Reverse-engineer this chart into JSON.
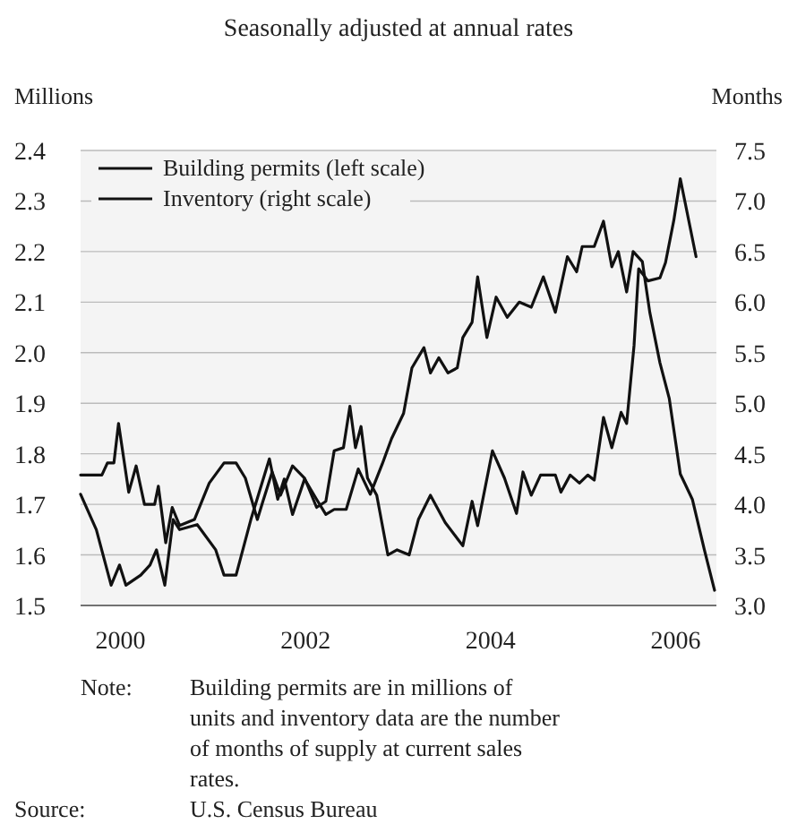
{
  "chart_data": {
    "type": "line",
    "title": "Seasonally adjusted at annual rates",
    "ylabel": "Millions",
    "y2label": "Months",
    "xlim": [
      1999.57,
      2006.44
    ],
    "xticks": [
      2000,
      2002,
      2004,
      2006
    ],
    "ylim": [
      1.5,
      2.4
    ],
    "yticks": [
      {
        "value": 1.5,
        "label": "1.5"
      },
      {
        "value": 1.6,
        "label": "1.6"
      },
      {
        "value": 1.7,
        "label": "1.7"
      },
      {
        "value": 1.8,
        "label": "1.8"
      },
      {
        "value": 1.9,
        "label": "1.9"
      },
      {
        "value": 2.0,
        "label": "2.0"
      },
      {
        "value": 2.1,
        "label": "2.1"
      },
      {
        "value": 2.2,
        "label": "2.2"
      },
      {
        "value": 2.3,
        "label": "2.3"
      },
      {
        "value": 2.4,
        "label": "2.4"
      }
    ],
    "y2lim": [
      3.0,
      7.5
    ],
    "y2ticks": [
      {
        "value": 3.0,
        "label": "3.0"
      },
      {
        "value": 3.5,
        "label": "3.5"
      },
      {
        "value": 4.0,
        "label": "4.0"
      },
      {
        "value": 4.5,
        "label": "4.5"
      },
      {
        "value": 5.0,
        "label": "5.0"
      },
      {
        "value": 5.5,
        "label": "5.5"
      },
      {
        "value": 6.0,
        "label": "6.0"
      },
      {
        "value": 6.5,
        "label": "6.5"
      },
      {
        "value": 7.0,
        "label": "7.0"
      },
      {
        "value": 7.5,
        "label": "7.5"
      }
    ],
    "grid": "y",
    "legend": "top left",
    "line_style": "solid",
    "series": [
      {
        "name": "Building permits (left scale)",
        "color": "#111111",
        "x": [
          1999.57,
          1999.74,
          1999.9,
          1999.99,
          2000.06,
          2000.22,
          2000.32,
          2000.39,
          2000.48,
          2000.57,
          2000.64,
          2000.83,
          2001.03,
          2001.12,
          2001.25,
          2001.41,
          2001.61,
          2001.7,
          2001.77,
          2001.86,
          2001.99,
          2002.12,
          2002.22,
          2002.31,
          2002.44,
          2002.57,
          2002.7,
          2002.83,
          2002.93,
          2003.06,
          2003.15,
          2003.28,
          2003.35,
          2003.44,
          2003.54,
          2003.64,
          2003.7,
          2003.8,
          2003.86,
          2003.96,
          2004.06,
          2004.18,
          2004.31,
          2004.44,
          2004.57,
          2004.7,
          2004.83,
          2004.93,
          2004.99,
          2005.12,
          2005.22,
          2005.31,
          2005.38,
          2005.47,
          2005.54,
          2005.64,
          2005.72,
          2005.83,
          2005.93,
          2006.05,
          2006.18,
          2006.31,
          2006.42
        ],
        "values": [
          1.72,
          1.65,
          1.54,
          1.58,
          1.54,
          1.56,
          1.58,
          1.61,
          1.54,
          1.67,
          1.65,
          1.66,
          1.61,
          1.56,
          1.56,
          1.67,
          1.79,
          1.71,
          1.75,
          1.68,
          1.75,
          1.71,
          1.68,
          1.69,
          1.69,
          1.77,
          1.72,
          1.78,
          1.83,
          1.88,
          1.97,
          2.01,
          1.96,
          1.99,
          1.96,
          1.97,
          2.03,
          2.06,
          2.15,
          2.03,
          2.11,
          2.07,
          2.1,
          2.09,
          2.15,
          2.08,
          2.19,
          2.16,
          2.21,
          2.21,
          2.26,
          2.17,
          2.2,
          2.12,
          2.2,
          2.18,
          2.08,
          1.98,
          1.91,
          1.76,
          1.71,
          1.61,
          1.53
        ]
      },
      {
        "name": "Inventory (right scale)",
        "color": "#111111",
        "axis": "y2",
        "x": [
          1999.57,
          1999.8,
          1999.86,
          1999.93,
          1999.98,
          2000.09,
          2000.17,
          2000.26,
          2000.37,
          2000.41,
          2000.49,
          2000.56,
          2000.64,
          2000.8,
          2000.96,
          2001.12,
          2001.25,
          2001.35,
          2001.48,
          2001.54,
          2001.64,
          2001.73,
          2001.86,
          2001.99,
          2002.12,
          2002.22,
          2002.31,
          2002.41,
          2002.48,
          2002.54,
          2002.6,
          2002.67,
          2002.77,
          2002.89,
          2002.99,
          2003.12,
          2003.22,
          2003.35,
          2003.51,
          2003.7,
          2003.8,
          2003.86,
          2004.02,
          2004.15,
          2004.28,
          2004.35,
          2004.44,
          2004.54,
          2004.7,
          2004.76,
          2004.86,
          2004.96,
          2005.05,
          2005.12,
          2005.22,
          2005.31,
          2005.41,
          2005.47,
          2005.55,
          2005.6,
          2005.7,
          2005.83,
          2005.89,
          2005.98,
          2006.05,
          2006.22
        ],
        "values": [
          4.29,
          4.29,
          4.41,
          4.41,
          4.8,
          4.12,
          4.38,
          4.0,
          4.0,
          4.18,
          3.62,
          3.97,
          3.79,
          3.85,
          4.21,
          4.41,
          4.41,
          4.26,
          3.85,
          4.03,
          4.32,
          4.09,
          4.38,
          4.26,
          3.97,
          4.03,
          4.53,
          4.56,
          4.97,
          4.56,
          4.77,
          4.26,
          4.09,
          3.5,
          3.55,
          3.5,
          3.85,
          4.09,
          3.82,
          3.59,
          4.03,
          3.79,
          4.53,
          4.26,
          3.91,
          4.32,
          4.09,
          4.29,
          4.29,
          4.12,
          4.29,
          4.21,
          4.29,
          4.24,
          4.86,
          4.56,
          4.91,
          4.8,
          5.57,
          6.33,
          6.21,
          6.24,
          6.39,
          6.81,
          7.22,
          6.45
        ]
      }
    ],
    "annotations": [
      "Note: Building permits are in millions of units and inventory data are the number of months of supply at current sales rates.",
      "Source: U.S. Census Bureau"
    ]
  }
}
